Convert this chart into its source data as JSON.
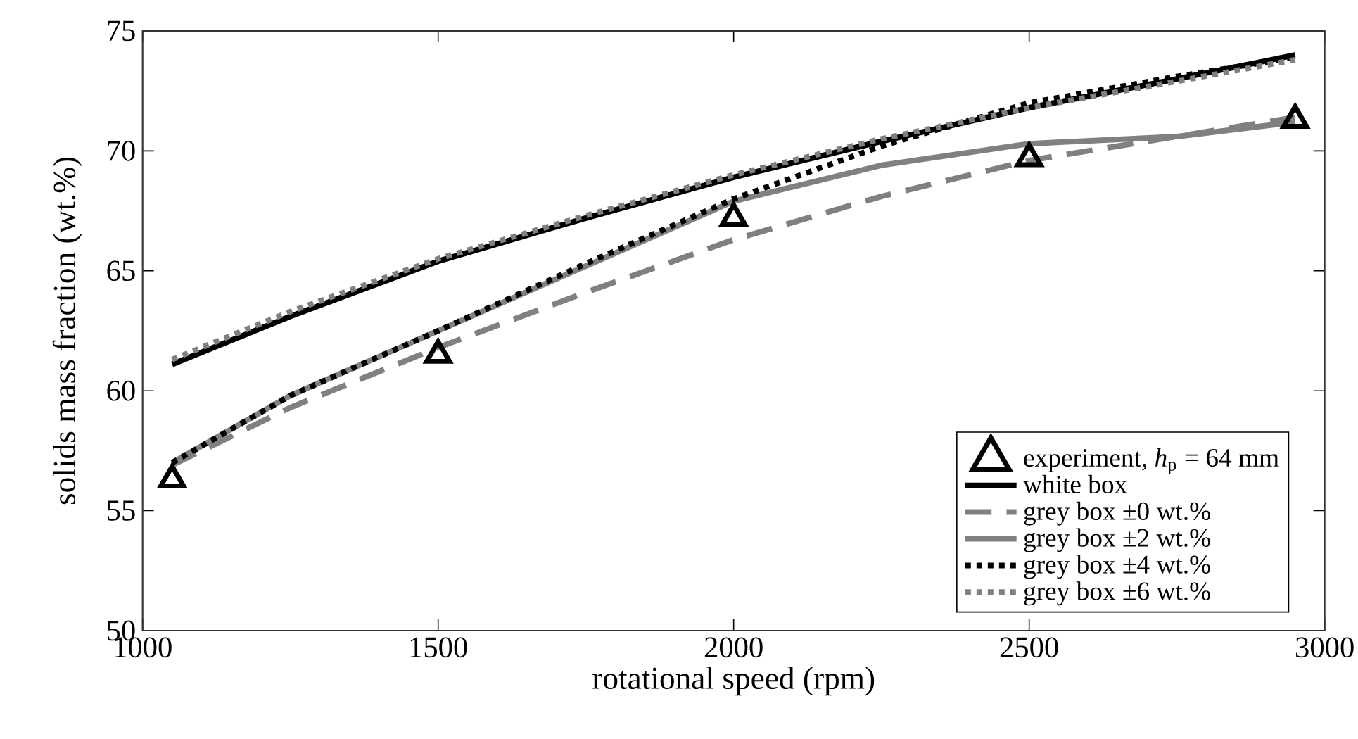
{
  "chart_data": {
    "type": "line",
    "xlabel": "rotational speed (rpm)",
    "ylabel": "solids mass fraction (wt.%)",
    "xlim": [
      1000,
      3000
    ],
    "ylim": [
      50,
      75
    ],
    "xticks": [
      1000,
      1500,
      2000,
      2500,
      3000
    ],
    "yticks": [
      50,
      55,
      60,
      65,
      70,
      75
    ],
    "grid": false,
    "legend": "bottom right",
    "series": [
      {
        "name": "experiment, *h*$_{p}$ = 64 mm",
        "type": "scatter",
        "marker": "triangle",
        "color": "#000000",
        "x": [
          1050,
          1500,
          2000,
          2500,
          2950
        ],
        "values": [
          56.3,
          61.5,
          67.2,
          69.7,
          71.3
        ]
      },
      {
        "name": "white box",
        "line_style": "solid",
        "color": "#000000",
        "x": [
          1050,
          1250,
          1500,
          1750,
          2000,
          2250,
          2500,
          2750,
          2950
        ],
        "values": [
          61.1,
          63.1,
          65.4,
          67.2,
          68.9,
          70.4,
          71.8,
          73.0,
          74.0
        ]
      },
      {
        "name": "grey box ±0 wt.%",
        "line_style": "dashed",
        "color": "#808080",
        "x": [
          1050,
          1250,
          1500,
          1750,
          2000,
          2250,
          2500,
          2750,
          2950
        ],
        "values": [
          56.9,
          59.3,
          61.8,
          64.1,
          66.3,
          68.1,
          69.6,
          70.6,
          71.4
        ]
      },
      {
        "name": "grey box ±2 wt.%",
        "line_style": "solid",
        "color": "#808080",
        "x": [
          1050,
          1250,
          1500,
          1750,
          2000,
          2250,
          2500,
          2750,
          2950
        ],
        "values": [
          57.0,
          59.8,
          62.5,
          65.2,
          67.9,
          69.4,
          70.3,
          70.6,
          71.2
        ]
      },
      {
        "name": "grey box ±4 wt.%",
        "line_style": "dotted",
        "color": "#000000",
        "x": [
          1050,
          1250,
          1500,
          1750,
          2000,
          2250,
          2500,
          2750,
          2950
        ],
        "values": [
          57.0,
          59.8,
          62.5,
          65.3,
          68.0,
          70.2,
          72.0,
          73.1,
          73.9
        ]
      },
      {
        "name": "grey box ±6 wt.%",
        "line_style": "dotted",
        "color": "#808080",
        "x": [
          1050,
          1250,
          1500,
          1750,
          2000,
          2250,
          2500,
          2750,
          2950
        ],
        "values": [
          61.3,
          63.3,
          65.5,
          67.3,
          69.0,
          70.5,
          71.8,
          72.9,
          73.8
        ]
      }
    ]
  }
}
